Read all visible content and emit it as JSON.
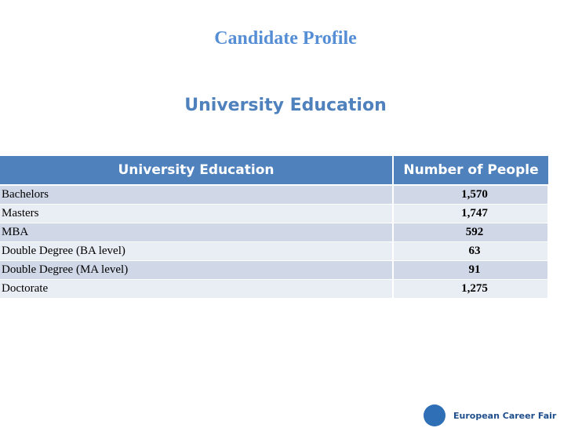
{
  "header": {
    "title": "Candidate Profile",
    "subtitle": "University Education"
  },
  "table": {
    "columns": [
      "University Education",
      "Number of People"
    ],
    "rows": [
      [
        "Bachelors",
        "1,570"
      ],
      [
        "Masters",
        "1,747"
      ],
      [
        "MBA",
        "592"
      ],
      [
        "Double Degree (BA level)",
        "63"
      ],
      [
        "Double Degree (MA level)",
        "91"
      ],
      [
        "Doctorate",
        "1,275"
      ]
    ]
  },
  "footer": {
    "logo": "European Career Fair"
  }
}
